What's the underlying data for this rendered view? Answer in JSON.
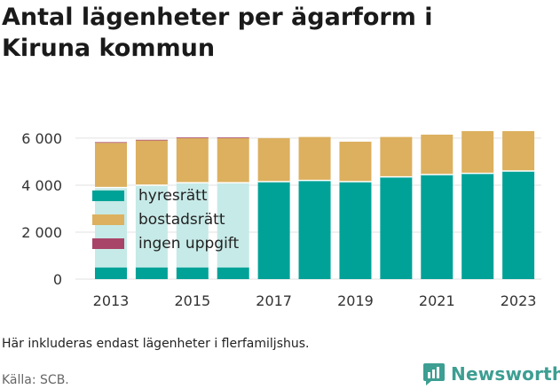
{
  "title_lines": [
    "Antal lägenheter per ägarform i",
    "Kiruna kommun"
  ],
  "note": "Här inkluderas endast lägenheter i flerfamiljshus.",
  "source": "Källa: SCB.",
  "brand": "Newsworthy",
  "colors": {
    "hyresratt": "#00a298",
    "hyresratt_faded": "#c6eae7",
    "bostadsratt": "#dcb05f",
    "ingen_uppgift": "#a84468",
    "grid": "#e2e2e2",
    "brand": "#3d9e92"
  },
  "chart_data": {
    "type": "bar",
    "stacked": true,
    "title": "Antal lägenheter per ägarform i Kiruna kommun",
    "categories": [
      "2013",
      "2014",
      "2015",
      "2016",
      "2017",
      "2018",
      "2019",
      "2020",
      "2021",
      "2022",
      "2023"
    ],
    "x_tick_labels": [
      "2013",
      "2015",
      "2017",
      "2019",
      "2021",
      "2023"
    ],
    "y_tick_labels": [
      "0",
      "2 000",
      "4 000",
      "6 000"
    ],
    "ylim": [
      0,
      6600
    ],
    "grid": true,
    "legend_position": "overlay-left",
    "series": [
      {
        "name": "hyresrätt",
        "color_key": "hyresratt",
        "values": [
          3900,
          4000,
          4100,
          4100,
          4150,
          4200,
          4150,
          4350,
          4450,
          4500,
          4600
        ],
        "faded_upper_until_index": 3,
        "faded_lower_value": 500
      },
      {
        "name": "bostadsrätt",
        "color_key": "bostadsratt",
        "values": [
          1900,
          1900,
          1900,
          1900,
          1850,
          1850,
          1700,
          1700,
          1700,
          1800,
          1700
        ]
      },
      {
        "name": "ingen uppgift",
        "color_key": "ingen_uppgift",
        "values": [
          30,
          30,
          30,
          30,
          0,
          0,
          0,
          0,
          0,
          0,
          0
        ]
      }
    ]
  }
}
